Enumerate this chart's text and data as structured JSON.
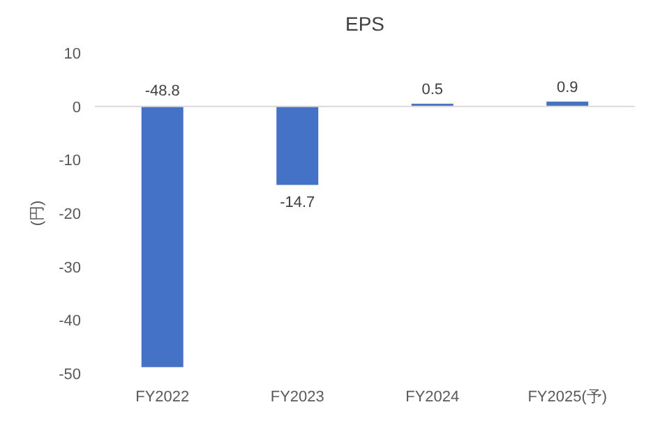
{
  "chart_data": {
    "type": "bar",
    "title": "EPS",
    "ylabel": "(円)",
    "categories": [
      "FY2022",
      "FY2023",
      "FY2024",
      "FY2025(予)"
    ],
    "values": [
      -48.8,
      -14.7,
      0.5,
      0.9
    ],
    "color": "#4472c4",
    "ylim": [
      -50,
      10
    ],
    "yticks": [
      -50,
      -40,
      -30,
      -20,
      -10,
      0,
      10
    ],
    "data_labels": true
  }
}
